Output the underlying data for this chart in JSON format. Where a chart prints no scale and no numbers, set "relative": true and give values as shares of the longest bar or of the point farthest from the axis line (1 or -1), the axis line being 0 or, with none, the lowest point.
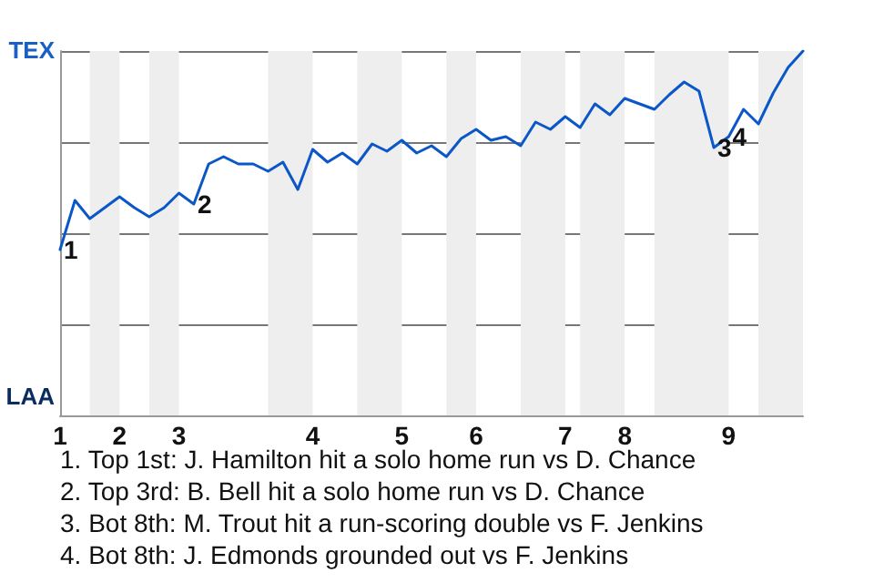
{
  "chart_data": {
    "type": "line",
    "relative": true,
    "categories": [
      "1",
      null,
      null,
      null,
      "2",
      null,
      null,
      null,
      "3",
      null,
      null,
      null,
      null,
      null,
      null,
      null,
      null,
      "4",
      null,
      null,
      null,
      null,
      null,
      "5",
      null,
      null,
      null,
      null,
      "6",
      null,
      null,
      null,
      null,
      null,
      "7",
      null,
      null,
      null,
      "8",
      null,
      null,
      null,
      null,
      null,
      null,
      "9",
      null,
      null,
      null,
      null,
      null
    ],
    "series": [
      {
        "color": "#0b57c8",
        "values": [
          0.455,
          0.59,
          0.54,
          0.57,
          0.6,
          0.57,
          0.545,
          0.57,
          0.61,
          0.58,
          0.69,
          0.71,
          0.69,
          0.69,
          0.67,
          0.695,
          0.62,
          0.73,
          0.695,
          0.72,
          0.69,
          0.745,
          0.725,
          0.755,
          0.72,
          0.74,
          0.71,
          0.76,
          0.785,
          0.755,
          0.765,
          0.74,
          0.805,
          0.785,
          0.82,
          0.79,
          0.855,
          0.825,
          0.87,
          0.855,
          0.84,
          0.88,
          0.915,
          0.89,
          0.735,
          0.765,
          0.84,
          0.8,
          0.885,
          0.955,
          1
        ]
      }
    ],
    "grid": "y",
    "marker": "none",
    "line_style": "solid",
    "annotations": [
      "TEX",
      "LAA",
      {
        "text": "1",
        "y": 0.455
      },
      {
        "text": "2",
        "y": 0.58
      },
      {
        "text": "3",
        "y": 0.735
      },
      {
        "text": "4",
        "y": 0.765
      },
      "1. Top 1st: J. Hamilton hit a solo home run vs D. Chance",
      "2. Top 3rd: B. Bell hit a solo home run vs D. Chance",
      "3. Bot 8th: M. Trout hit a run-scoring double vs F. Jenkins",
      "4. Bot 8th: J. Edmonds grounded out vs F. Jenkins"
    ]
  }
}
